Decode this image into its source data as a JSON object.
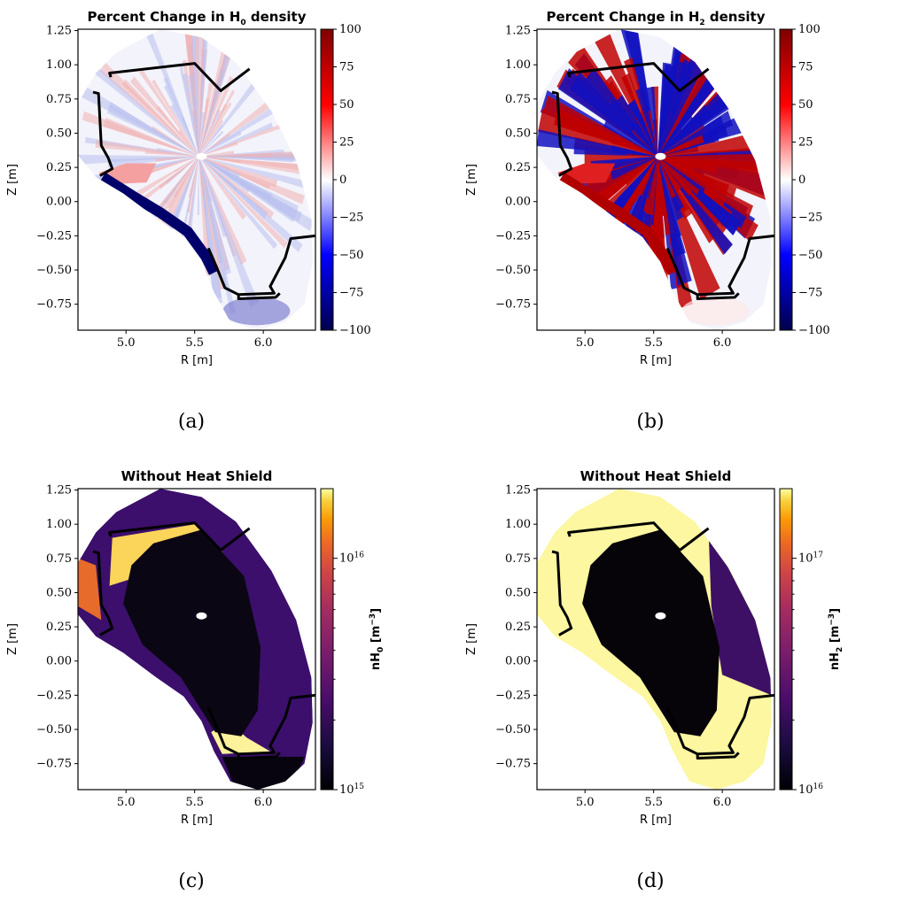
{
  "chart_data": [
    {
      "type": "heatmap",
      "caption": "(a)",
      "title": "Percent Change in H",
      "title_sub": "0",
      "title_tail": " density",
      "xlabel": "R [m]",
      "ylabel": "Z [m]",
      "xlim": [
        4.65,
        6.38
      ],
      "ylim": [
        -0.94,
        1.26
      ],
      "xticks": [
        "5.0",
        "5.5",
        "6.0"
      ],
      "yticks": [
        "1.25",
        "1.00",
        "0.75",
        "0.50",
        "0.25",
        "0.00",
        "−0.25",
        "−0.50",
        "−0.75"
      ],
      "colorbar": {
        "scale": "linear",
        "min": -100,
        "max": 100,
        "ticks": [
          "100",
          "75",
          "50",
          "25",
          "0",
          "−25",
          "−50",
          "−75",
          "−100"
        ],
        "colormap": "seismic",
        "label": ""
      }
    },
    {
      "type": "heatmap",
      "caption": "(b)",
      "title": "Percent Change in H",
      "title_sub": "2",
      "title_tail": " density",
      "xlabel": "R [m]",
      "ylabel": "Z [m]",
      "xlim": [
        4.65,
        6.38
      ],
      "ylim": [
        -0.94,
        1.26
      ],
      "xticks": [
        "5.0",
        "5.5",
        "6.0"
      ],
      "yticks": [
        "1.25",
        "1.00",
        "0.75",
        "0.50",
        "0.25",
        "0.00",
        "−0.25",
        "−0.50",
        "−0.75"
      ],
      "colorbar": {
        "scale": "linear",
        "min": -100,
        "max": 100,
        "ticks": [
          "100",
          "75",
          "50",
          "25",
          "0",
          "−25",
          "−50",
          "−75",
          "−100"
        ],
        "colormap": "seismic",
        "label": ""
      }
    },
    {
      "type": "heatmap",
      "caption": "(c)",
      "title": "Without Heat Shield",
      "xlabel": "R [m]",
      "ylabel": "Z [m]",
      "xlim": [
        4.65,
        6.38
      ],
      "ylim": [
        -0.94,
        1.26
      ],
      "xticks": [
        "5.0",
        "5.5",
        "6.0"
      ],
      "yticks": [
        "1.25",
        "1.00",
        "0.75",
        "0.50",
        "0.25",
        "0.00",
        "−0.25",
        "−0.50",
        "−0.75"
      ],
      "colorbar": {
        "scale": "log",
        "min": "1e15",
        "max": "2e16",
        "ticks": [
          "10^16",
          "10^15"
        ],
        "colormap": "inferno",
        "label": "nH",
        "label_sub": "0",
        "label_unit": " [m",
        "label_sup": "−3",
        "label_end": "]"
      }
    },
    {
      "type": "heatmap",
      "caption": "(d)",
      "title": "Without Heat Shield",
      "xlabel": "R [m]",
      "ylabel": "Z [m]",
      "xlim": [
        4.65,
        6.38
      ],
      "ylim": [
        -0.94,
        1.26
      ],
      "xticks": [
        "5.0",
        "5.5",
        "6.0"
      ],
      "yticks": [
        "1.25",
        "1.00",
        "0.75",
        "0.50",
        "0.25",
        "0.00",
        "−0.25",
        "−0.50",
        "−0.75"
      ],
      "colorbar": {
        "scale": "log",
        "min": "1e16",
        "max": "2e17",
        "ticks": [
          "10^17",
          "10^16"
        ],
        "colormap": "inferno",
        "label": "nH",
        "label_sub": "2",
        "label_unit": " [m",
        "label_sup": "−3",
        "label_end": "]"
      }
    }
  ]
}
